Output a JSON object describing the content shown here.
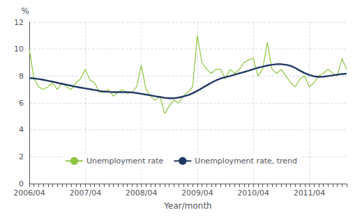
{
  "chart_data": {
    "type": "line",
    "xlabel": "Year/month",
    "ylabel": "%",
    "categories": [
      "2006/04",
      null,
      null,
      null,
      null,
      null,
      null,
      null,
      null,
      null,
      null,
      null,
      "2007/04",
      null,
      null,
      null,
      null,
      null,
      null,
      null,
      null,
      null,
      null,
      null,
      "2008/04",
      null,
      null,
      null,
      null,
      null,
      null,
      null,
      null,
      null,
      null,
      null,
      "2009/04",
      null,
      null,
      null,
      null,
      null,
      null,
      null,
      null,
      null,
      null,
      null,
      "2010/04",
      null,
      null,
      null,
      null,
      null,
      null,
      null,
      null,
      null,
      null,
      null,
      "2011/04",
      null,
      null,
      null,
      null,
      null,
      null,
      null,
      null
    ],
    "series": [
      {
        "name": "Unemployment rate",
        "color": "#8dc63f",
        "values": [
          10.0,
          7.8,
          7.2,
          7.0,
          7.2,
          7.5,
          7.0,
          7.5,
          7.2,
          7.0,
          7.5,
          7.8,
          8.5,
          7.7,
          7.5,
          6.8,
          6.8,
          7.0,
          6.5,
          6.8,
          7.0,
          6.7,
          6.8,
          7.2,
          8.8,
          7.0,
          6.5,
          6.2,
          6.5,
          5.2,
          5.8,
          6.2,
          6.0,
          6.5,
          6.8,
          7.2,
          11.0,
          9.0,
          8.5,
          8.2,
          8.5,
          8.5,
          7.8,
          8.5,
          8.2,
          8.5,
          9.0,
          9.2,
          9.3,
          8.0,
          8.5,
          10.5,
          8.5,
          8.2,
          8.5,
          8.0,
          7.5,
          7.2,
          7.8,
          8.0,
          7.2,
          7.5,
          8.0,
          8.2,
          8.5,
          8.2,
          8.0,
          9.3,
          8.5
        ]
      },
      {
        "name": "Unemployment rate, trend",
        "color": "#1f3864",
        "values": [
          7.85,
          7.82,
          7.78,
          7.72,
          7.65,
          7.58,
          7.5,
          7.42,
          7.35,
          7.28,
          7.2,
          7.14,
          7.08,
          7.02,
          6.96,
          6.9,
          6.85,
          6.82,
          6.8,
          6.8,
          6.8,
          6.8,
          6.78,
          6.74,
          6.68,
          6.62,
          6.56,
          6.5,
          6.44,
          6.38,
          6.35,
          6.35,
          6.4,
          6.48,
          6.58,
          6.72,
          6.9,
          7.1,
          7.3,
          7.5,
          7.68,
          7.82,
          7.92,
          8.0,
          8.1,
          8.2,
          8.3,
          8.4,
          8.52,
          8.62,
          8.7,
          8.78,
          8.84,
          8.88,
          8.88,
          8.84,
          8.76,
          8.6,
          8.4,
          8.22,
          8.08,
          7.98,
          7.94,
          7.95,
          8.0,
          8.05,
          8.1,
          8.15,
          8.18
        ]
      }
    ],
    "ylim": [
      0,
      12
    ],
    "yticks": [
      0,
      2,
      4,
      6,
      8,
      10,
      12
    ],
    "grid": true,
    "legend": "bottom"
  }
}
